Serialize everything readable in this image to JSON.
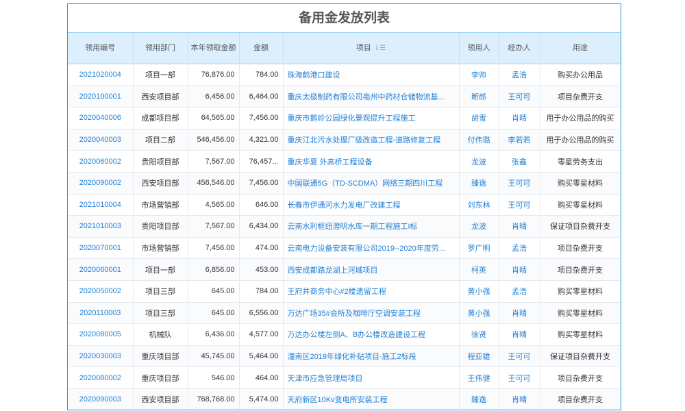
{
  "title": "备用金发放列表",
  "columns": [
    "领用编号",
    "领用部门",
    "本年领取金额",
    "金额",
    "项目",
    "领用人",
    "经办人",
    "用途"
  ],
  "sort_icon": "sort-icon",
  "colors": {
    "accent": "#1f7fd6",
    "header_bg": "#ddeefc",
    "border": "#1e9be8"
  },
  "rows": [
    [
      "2021020004",
      "项目一部",
      "76,876.00",
      "784.00",
      "珠海鹤港口建设",
      "李帅",
      "孟浩",
      "购买办公用品"
    ],
    [
      "2020100001",
      "西安项目部",
      "6,456.00",
      "6,464.00",
      "重庆太极制药有限公司亳州中药材仓储物流基...",
      "断郎",
      "王可可",
      "项目杂费开支"
    ],
    [
      "2020040006",
      "成都项目部",
      "64,565.00",
      "7,456.00",
      "重庆市鹅岭公园绿化景观提升工程施工",
      "胡雪",
      "肖晴",
      "用于办公用品的购买"
    ],
    [
      "2020040003",
      "项目二部",
      "546,456.00",
      "4,321.00",
      "重庆江北污水处理厂级改造工程-道路修复工程",
      "付伟璐",
      "李若若",
      "用于办公用品的购买"
    ],
    [
      "2020060002",
      "贵阳项目部",
      "7,567.00",
      "76,457...",
      "重庆华夏 外高桥工程设备",
      "龙波",
      "张鑫",
      "零星劳务支出"
    ],
    [
      "2020090002",
      "西安项目部",
      "456,546.00",
      "7,456.00",
      "中国联通5G（TD-SCDMA）网络三期四川工程",
      "臻逸",
      "王可可",
      "购买零星材料"
    ],
    [
      "2021010004",
      "市场营销部",
      "4,565.00",
      "646.00",
      "长春市伊通河水力发电厂改建工程",
      "刘东林",
      "王可可",
      "购买零星材料"
    ],
    [
      "2021010003",
      "贵阳项目部",
      "7,567.00",
      "6,434.00",
      "云南水利枢纽潜明水库一期工程施工I标",
      "龙波",
      "肖晴",
      "保证项目杂费开支"
    ],
    [
      "2020070001",
      "市场营销部",
      "7,456.00",
      "474.00",
      "云南电力设备安装有限公司2019--2020年度劳...",
      "罗广明",
      "孟浩",
      "项目杂费开支"
    ],
    [
      "2020060001",
      "项目一部",
      "6,856.00",
      "453.00",
      "西安成都路龙湖上河城项目",
      "柯英",
      "肖晴",
      "项目杂费开支"
    ],
    [
      "2020050002",
      "项目三部",
      "645.00",
      "784.00",
      "王府井商务中心#2楼遗留工程",
      "黄小强",
      "孟浩",
      "购买零星材料"
    ],
    [
      "2020110003",
      "项目三部",
      "645.00",
      "6,556.00",
      "万达广场35#会所及咖啡厅空调安装工程",
      "黄小强",
      "肖晴",
      "购买零星材料"
    ],
    [
      "2020080005",
      "机械队",
      "6,436.00",
      "4,577.00",
      "万达办公楼左侧A、B办公楼改造建设工程",
      "徐贤",
      "肖晴",
      "购买零星材料"
    ],
    [
      "2020030003",
      "重庆项目部",
      "45,745.00",
      "5,464.00",
      "潼南区2019年绿化补贴项目-施工2标段",
      "程亚雄",
      "王可可",
      "保证项目杂费开支"
    ],
    [
      "2020080002",
      "重庆项目部",
      "546.00",
      "464.00",
      "天津市应急管理局项目",
      "王伟健",
      "王可可",
      "项目杂费开支"
    ],
    [
      "2020090003",
      "西安项目部",
      "768,768.00",
      "5,474.00",
      "天府新区10Kv变电所安装工程",
      "臻逸",
      "肖晴",
      "项目杂费开支"
    ]
  ]
}
